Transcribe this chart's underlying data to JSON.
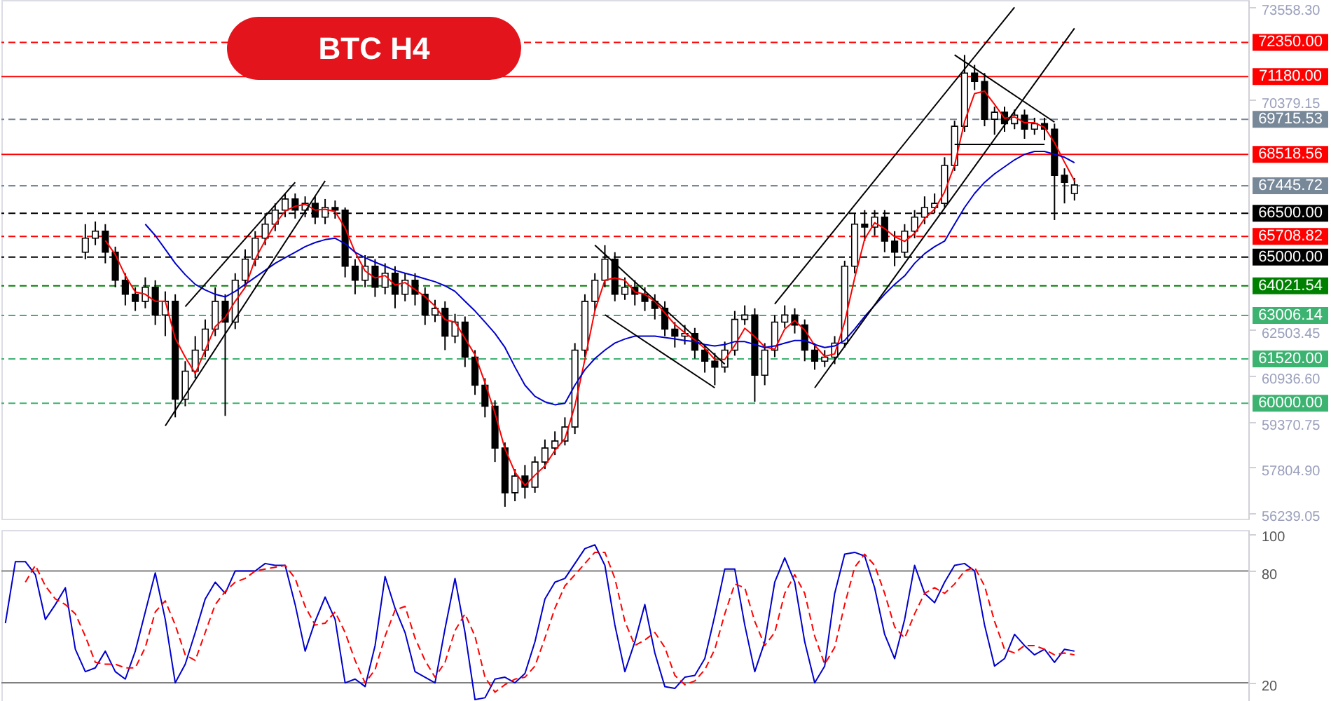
{
  "chart_data": [
    {
      "type": "candlestick",
      "title": "BTC H4",
      "tick_labels": "y",
      "categories": [
        null,
        null,
        null,
        null,
        null,
        null,
        null,
        null,
        null,
        null,
        null,
        null,
        null,
        null,
        null,
        null,
        null,
        null,
        null,
        null,
        null,
        null,
        null,
        null,
        null,
        null,
        null,
        null,
        null,
        null,
        null,
        null,
        null,
        null,
        null,
        null,
        null,
        null,
        null,
        null,
        null,
        null,
        null,
        null,
        null,
        null,
        null,
        null,
        null,
        null,
        null,
        null,
        null,
        null,
        null,
        null,
        null,
        null,
        null,
        null,
        null,
        null,
        null,
        null,
        null,
        null,
        null,
        null,
        null,
        null,
        null,
        null,
        null,
        null,
        null,
        null,
        null,
        null,
        null,
        null,
        null,
        null,
        null,
        null,
        null,
        null,
        null,
        null,
        null,
        null,
        null,
        null,
        null,
        null,
        null,
        null,
        null,
        null,
        null,
        null
      ],
      "ohlc": [
        [
          65170,
          66130,
          64930,
          65650
        ],
        [
          65650,
          66220,
          65410,
          65890
        ],
        [
          65890,
          66130,
          64790,
          65170
        ],
        [
          65170,
          65360,
          63970,
          64210
        ],
        [
          64210,
          64450,
          63350,
          63730
        ],
        [
          63730,
          63970,
          63160,
          63490
        ],
        [
          63490,
          64310,
          63250,
          63970
        ],
        [
          63970,
          64210,
          62680,
          63020
        ],
        [
          63020,
          63830,
          62300,
          63490
        ],
        [
          63490,
          63730,
          59520,
          60140
        ],
        [
          60140,
          61440,
          59900,
          61100
        ],
        [
          61100,
          62300,
          60860,
          61820
        ],
        [
          61820,
          62870,
          61580,
          62540
        ],
        [
          62540,
          63970,
          62300,
          63490
        ],
        [
          63490,
          63730,
          59570,
          62780
        ],
        [
          62780,
          64450,
          62540,
          64210
        ],
        [
          64210,
          65270,
          63970,
          64930
        ],
        [
          64930,
          65890,
          64690,
          65650
        ],
        [
          65650,
          66510,
          65410,
          66130
        ],
        [
          66130,
          66840,
          65890,
          66610
        ],
        [
          66610,
          67180,
          66370,
          66990
        ],
        [
          66990,
          67180,
          66320,
          66610
        ],
        [
          66610,
          67080,
          66370,
          66840
        ],
        [
          66840,
          67080,
          66130,
          66370
        ],
        [
          66370,
          66990,
          66130,
          66700
        ],
        [
          66700,
          66940,
          66320,
          66610
        ],
        [
          66610,
          66700,
          64310,
          64690
        ],
        [
          64690,
          64930,
          63730,
          64210
        ],
        [
          64210,
          65070,
          63970,
          64690
        ],
        [
          64690,
          64930,
          63640,
          63970
        ],
        [
          63970,
          64790,
          63730,
          64450
        ],
        [
          64450,
          64690,
          63250,
          63730
        ],
        [
          63730,
          64450,
          63490,
          64210
        ],
        [
          64210,
          64450,
          63350,
          63730
        ],
        [
          63730,
          63970,
          62680,
          63020
        ],
        [
          63020,
          63540,
          62780,
          63250
        ],
        [
          63250,
          63490,
          61820,
          62300
        ],
        [
          62300,
          63060,
          62060,
          62780
        ],
        [
          62780,
          62970,
          61240,
          61580
        ],
        [
          61580,
          61820,
          60290,
          60620
        ],
        [
          60620,
          60860,
          59520,
          59900
        ],
        [
          59900,
          60100,
          57990,
          58470
        ],
        [
          58470,
          58660,
          56460,
          56940
        ],
        [
          56940,
          57750,
          56650,
          57510
        ],
        [
          57510,
          57890,
          56740,
          57130
        ],
        [
          57130,
          58180,
          56940,
          57990
        ],
        [
          57990,
          58760,
          57750,
          58470
        ],
        [
          58470,
          59040,
          58230,
          58710
        ],
        [
          58710,
          59520,
          58560,
          59190
        ],
        [
          59190,
          62060,
          58950,
          61820
        ],
        [
          61820,
          63730,
          61580,
          63490
        ],
        [
          63490,
          64450,
          63160,
          64210
        ],
        [
          64210,
          65410,
          63970,
          64930
        ],
        [
          64930,
          65170,
          63490,
          63730
        ],
        [
          63730,
          64310,
          63540,
          63970
        ],
        [
          63970,
          64210,
          63350,
          63730
        ],
        [
          63730,
          63970,
          63160,
          63490
        ],
        [
          63490,
          63730,
          62870,
          63250
        ],
        [
          63250,
          63490,
          62300,
          62540
        ],
        [
          62540,
          62780,
          61910,
          62300
        ],
        [
          62300,
          62680,
          62010,
          62390
        ],
        [
          62390,
          62580,
          61530,
          61820
        ],
        [
          61820,
          62010,
          61050,
          61440
        ],
        [
          61440,
          61720,
          60620,
          61240
        ],
        [
          61240,
          62110,
          61050,
          61820
        ],
        [
          61820,
          63160,
          61630,
          62870
        ],
        [
          62870,
          63350,
          62680,
          63020
        ],
        [
          63020,
          63250,
          60050,
          60960
        ],
        [
          60960,
          62060,
          60620,
          61820
        ],
        [
          61820,
          63020,
          61580,
          62780
        ],
        [
          62780,
          63350,
          62580,
          63020
        ],
        [
          63020,
          63250,
          62390,
          62680
        ],
        [
          62680,
          62870,
          61440,
          61820
        ],
        [
          61820,
          62060,
          61150,
          61440
        ],
        [
          61440,
          61820,
          61240,
          61580
        ],
        [
          61580,
          62300,
          61340,
          62060
        ],
        [
          62060,
          64880,
          61910,
          64690
        ],
        [
          64690,
          66510,
          64450,
          66130
        ],
        [
          66130,
          66610,
          65550,
          66030
        ],
        [
          66030,
          66610,
          65740,
          66370
        ],
        [
          66370,
          66610,
          65170,
          65550
        ],
        [
          65550,
          65890,
          64690,
          65170
        ],
        [
          65170,
          66130,
          64980,
          65890
        ],
        [
          65890,
          66610,
          65650,
          66370
        ],
        [
          66370,
          67080,
          66130,
          66700
        ],
        [
          66700,
          67180,
          66510,
          66840
        ],
        [
          66840,
          68420,
          66700,
          68140
        ],
        [
          68140,
          69670,
          67950,
          69480
        ],
        [
          69480,
          71920,
          69290,
          71300
        ],
        [
          71300,
          71580,
          70720,
          71010
        ],
        [
          71010,
          71300,
          69480,
          69720
        ],
        [
          69720,
          70150,
          69190,
          69960
        ],
        [
          69960,
          70150,
          69290,
          69570
        ],
        [
          69570,
          70050,
          69380,
          69860
        ],
        [
          69860,
          70050,
          69050,
          69380
        ],
        [
          69380,
          69770,
          69190,
          69570
        ],
        [
          69570,
          69770,
          69000,
          69380
        ],
        [
          69380,
          69570,
          66270,
          67800
        ],
        [
          67800,
          68040,
          66840,
          67560
        ],
        [
          67180,
          67710,
          66940,
          67470
        ]
      ],
      "series": [
        {
          "type": "line",
          "color": "#ff0000",
          "values": [
            null,
            null,
            65570,
            65090,
            64370,
            63810,
            63730,
            63490,
            63490,
            62220,
            61580,
            61020,
            61820,
            62620,
            62940,
            63490,
            63970,
            64930,
            65570,
            66130,
            66580,
            66740,
            66810,
            66610,
            66640,
            66560,
            66000,
            65170,
            64530,
            64290,
            64370,
            64050,
            64130,
            63890,
            63650,
            63330,
            62860,
            62780,
            62220,
            61660,
            60700,
            59660,
            58440,
            57640,
            57190,
            57540,
            57860,
            58390,
            58790,
            59910,
            61500,
            63170,
            64210,
            64290,
            64210,
            63810,
            63730,
            63490,
            63090,
            62700,
            62410,
            62170,
            61880,
            61500,
            61500,
            61980,
            62570,
            62280,
            61930,
            61850,
            62540,
            62830,
            62510,
            61980,
            61610,
            61690,
            62780,
            64290,
            65620,
            66180,
            65980,
            65700,
            65540,
            65810,
            66320,
            66640,
            67230,
            68150,
            69640,
            70600,
            70680,
            70230,
            69750,
            69800,
            69600,
            69600,
            69440,
            68920,
            68250,
            67610
          ]
        },
        {
          "type": "line",
          "color": "#0000cd",
          "values": [
            null,
            null,
            null,
            null,
            null,
            null,
            66130,
            65740,
            65270,
            64790,
            64400,
            64070,
            63880,
            63730,
            63640,
            63830,
            64070,
            64310,
            64550,
            64790,
            64980,
            65170,
            65360,
            65500,
            65600,
            65650,
            65460,
            65170,
            64980,
            64830,
            64690,
            64550,
            64450,
            64360,
            64260,
            64160,
            64020,
            63830,
            63490,
            63160,
            62780,
            62390,
            61910,
            61240,
            60620,
            60240,
            60050,
            59950,
            60000,
            60620,
            61150,
            61530,
            61820,
            62060,
            62200,
            62300,
            62300,
            62300,
            62250,
            62200,
            62150,
            62110,
            62010,
            61960,
            62010,
            62110,
            62110,
            62010,
            61910,
            61960,
            62060,
            62150,
            62150,
            62010,
            61910,
            61960,
            62150,
            62540,
            62970,
            63350,
            63730,
            64070,
            64360,
            64790,
            65120,
            65360,
            65550,
            66130,
            66700,
            67180,
            67560,
            67850,
            68090,
            68330,
            68520,
            68620,
            68620,
            68520,
            68420,
            68230
          ]
        },
        {
          "type": "line",
          "color": "#000000",
          "values": [
            null,
            null,
            null,
            null,
            null,
            null,
            null,
            null,
            59230,
            null,
            null,
            null,
            null,
            null,
            null,
            null,
            null,
            null,
            null,
            null,
            null,
            null,
            null,
            null,
            67610,
            null,
            null,
            null,
            null,
            null,
            null,
            null,
            null,
            null,
            null,
            null,
            null,
            null,
            null,
            null,
            null,
            null,
            null,
            null,
            null,
            null,
            null,
            null,
            null,
            null,
            null,
            null,
            null,
            null,
            null,
            null,
            null,
            null,
            null,
            null,
            null,
            null,
            null,
            null,
            null,
            null,
            null,
            null,
            null,
            null,
            null,
            null,
            null,
            null,
            null,
            null,
            null,
            null,
            null,
            null,
            null,
            null,
            null,
            null,
            null,
            null,
            null,
            null,
            null,
            null,
            null,
            null,
            null,
            null,
            null,
            null,
            null,
            null,
            null,
            null
          ]
        },
        {
          "type": "line",
          "color": "#000000",
          "values": [
            null,
            null,
            null,
            null,
            null,
            null,
            null,
            null,
            null,
            null,
            63310,
            null,
            null,
            null,
            null,
            null,
            null,
            null,
            null,
            null,
            null,
            67560,
            null,
            null,
            null,
            null,
            null,
            null,
            null,
            null,
            null,
            null,
            null,
            null,
            null,
            null,
            null,
            null,
            null,
            null,
            null,
            null,
            null,
            null,
            null,
            null,
            null,
            null,
            null,
            null,
            null,
            null,
            null,
            null,
            null,
            null,
            null,
            null,
            null,
            null,
            null,
            null,
            null,
            null,
            null,
            null,
            null,
            null,
            null,
            null,
            null,
            null,
            null,
            null,
            null,
            null,
            null,
            null,
            null,
            null,
            null,
            null,
            null,
            null,
            null,
            null,
            null,
            null,
            null,
            null,
            null,
            null,
            null,
            null,
            null,
            null,
            null,
            null,
            null,
            null
          ]
        },
        {
          "type": "line",
          "color": "#000000",
          "values": [
            null,
            null,
            null,
            null,
            null,
            null,
            null,
            null,
            null,
            null,
            null,
            null,
            null,
            null,
            null,
            null,
            null,
            null,
            null,
            null,
            null,
            null,
            null,
            null,
            null,
            null,
            null,
            null,
            null,
            null,
            null,
            null,
            null,
            null,
            null,
            null,
            null,
            null,
            null,
            null,
            null,
            null,
            null,
            null,
            null,
            null,
            null,
            null,
            null,
            null,
            null,
            65410,
            null,
            null,
            null,
            null,
            null,
            null,
            null,
            null,
            null,
            null,
            null,
            null,
            61340,
            null,
            null,
            null,
            null,
            null,
            null,
            null,
            null,
            null,
            null,
            null,
            null,
            null,
            null,
            null,
            null,
            null,
            null,
            null,
            null,
            null,
            null,
            null,
            null,
            null,
            null,
            null,
            null,
            null,
            null,
            null,
            null,
            null,
            null,
            null
          ]
        },
        {
          "type": "line",
          "color": "#000000",
          "values": [
            null,
            null,
            null,
            null,
            null,
            null,
            null,
            null,
            null,
            null,
            null,
            null,
            null,
            null,
            null,
            null,
            null,
            null,
            null,
            null,
            null,
            null,
            null,
            null,
            null,
            null,
            null,
            null,
            null,
            null,
            null,
            null,
            null,
            null,
            null,
            null,
            null,
            null,
            null,
            null,
            null,
            null,
            null,
            null,
            null,
            null,
            null,
            null,
            null,
            null,
            null,
            null,
            63030,
            null,
            null,
            null,
            null,
            null,
            null,
            null,
            null,
            null,
            null,
            60530,
            null,
            null,
            null,
            null,
            null,
            null,
            null,
            null,
            null,
            null,
            null,
            null,
            null,
            null,
            null,
            null,
            null,
            null,
            null,
            null,
            null,
            null,
            null,
            null,
            null,
            null,
            null,
            null,
            null,
            null,
            null,
            null,
            null,
            null,
            null,
            null
          ]
        },
        {
          "type": "line",
          "color": "#000000",
          "values": [
            null,
            null,
            null,
            null,
            null,
            null,
            null,
            null,
            null,
            null,
            null,
            null,
            null,
            null,
            null,
            null,
            null,
            null,
            null,
            null,
            null,
            null,
            null,
            null,
            null,
            null,
            null,
            null,
            null,
            null,
            null,
            null,
            null,
            null,
            null,
            null,
            null,
            null,
            null,
            null,
            null,
            null,
            null,
            null,
            null,
            null,
            null,
            null,
            null,
            null,
            null,
            null,
            null,
            null,
            null,
            null,
            null,
            null,
            null,
            null,
            null,
            null,
            null,
            null,
            null,
            null,
            null,
            null,
            null,
            63400,
            null,
            null,
            null,
            null,
            null,
            null,
            null,
            null,
            null,
            null,
            null,
            null,
            null,
            null,
            null,
            null,
            null,
            null,
            null,
            null,
            null,
            null,
            null,
            73550,
            null,
            null,
            null,
            null,
            null,
            null
          ]
        },
        {
          "type": "line",
          "color": "#000000",
          "values": [
            null,
            null,
            null,
            null,
            null,
            null,
            null,
            null,
            null,
            null,
            null,
            null,
            null,
            null,
            null,
            null,
            null,
            null,
            null,
            null,
            null,
            null,
            null,
            null,
            null,
            null,
            null,
            null,
            null,
            null,
            null,
            null,
            null,
            null,
            null,
            null,
            null,
            null,
            null,
            null,
            null,
            null,
            null,
            null,
            null,
            null,
            null,
            null,
            null,
            null,
            null,
            null,
            null,
            null,
            null,
            null,
            null,
            null,
            null,
            null,
            null,
            null,
            null,
            null,
            null,
            null,
            null,
            null,
            null,
            null,
            null,
            null,
            null,
            60530,
            null,
            null,
            null,
            null,
            null,
            null,
            null,
            null,
            null,
            null,
            null,
            null,
            null,
            null,
            null,
            null,
            null,
            null,
            null,
            null,
            null,
            null,
            null,
            null,
            null,
            72830
          ]
        },
        {
          "type": "line",
          "color": "#000000",
          "values": [
            null,
            null,
            null,
            null,
            null,
            null,
            null,
            null,
            null,
            null,
            null,
            null,
            null,
            null,
            null,
            null,
            null,
            null,
            null,
            null,
            null,
            null,
            null,
            null,
            null,
            null,
            null,
            null,
            null,
            null,
            null,
            null,
            null,
            null,
            null,
            null,
            null,
            null,
            null,
            null,
            null,
            null,
            null,
            null,
            null,
            null,
            null,
            null,
            null,
            null,
            null,
            null,
            null,
            null,
            null,
            null,
            null,
            null,
            null,
            null,
            null,
            null,
            null,
            null,
            null,
            null,
            null,
            null,
            null,
            null,
            null,
            null,
            null,
            null,
            null,
            null,
            null,
            null,
            null,
            null,
            null,
            null,
            null,
            null,
            null,
            null,
            null,
            71920,
            null,
            null,
            null,
            null,
            null,
            null,
            null,
            null,
            null,
            69620,
            null,
            null
          ]
        },
        {
          "type": "line",
          "color": "#000000",
          "values": [
            null,
            null,
            null,
            null,
            null,
            null,
            null,
            null,
            null,
            null,
            null,
            null,
            null,
            null,
            null,
            null,
            null,
            null,
            null,
            null,
            null,
            null,
            null,
            null,
            null,
            null,
            null,
            null,
            null,
            null,
            null,
            null,
            null,
            null,
            null,
            null,
            null,
            null,
            null,
            null,
            null,
            null,
            null,
            null,
            null,
            null,
            null,
            null,
            null,
            null,
            null,
            null,
            null,
            null,
            null,
            null,
            null,
            null,
            null,
            null,
            null,
            null,
            null,
            null,
            null,
            null,
            null,
            null,
            null,
            null,
            null,
            null,
            null,
            null,
            null,
            null,
            null,
            null,
            null,
            null,
            null,
            null,
            null,
            null,
            null,
            null,
            null,
            68860,
            null,
            null,
            null,
            null,
            null,
            null,
            null,
            null,
            68860,
            null,
            null,
            null
          ]
        }
      ],
      "ylim": [
        56050,
        73800
      ],
      "yticks": [
        {
          "value": 73558.3,
          "label": "73558.30"
        },
        {
          "value": 70379.15,
          "label": "70379.15"
        },
        {
          "value": 62503.45,
          "label": "62503.45"
        },
        {
          "value": 60936.6,
          "label": "60936.60"
        },
        {
          "value": 59370.75,
          "label": "59370.75"
        },
        {
          "value": 57804.9,
          "label": "57804.90"
        },
        {
          "value": 56239.05,
          "label": "56239.05"
        }
      ],
      "ref_lines": [
        {
          "axis": "y",
          "value": 72350,
          "label": "72350.00",
          "color": "#ff0000",
          "line_style": "dashed"
        },
        {
          "axis": "y",
          "value": 71180,
          "label": "71180.00",
          "color": "#ff0000",
          "line_style": "solid"
        },
        {
          "axis": "y",
          "value": 69715.53,
          "label": "69715.53",
          "color": "#778899",
          "line_style": "dashed"
        },
        {
          "axis": "y",
          "value": 68518.56,
          "label": "68518.56",
          "color": "#ff0000",
          "line_style": "solid"
        },
        {
          "axis": "y",
          "value": 67445.72,
          "label": "67445.72",
          "color": "#778899",
          "line_style": "dashed"
        },
        {
          "axis": "y",
          "value": 66500,
          "label": "66500.00",
          "color": "#000000",
          "line_style": "dashed"
        },
        {
          "axis": "y",
          "value": 65708.82,
          "label": "65708.82",
          "color": "#ff0000",
          "line_style": "dashed"
        },
        {
          "axis": "y",
          "value": 65000,
          "label": "65000.00",
          "color": "#000000",
          "line_style": "dashed"
        },
        {
          "axis": "y",
          "value": 64021.54,
          "label": "64021.54",
          "color": "#008000",
          "line_style": "dashed"
        },
        {
          "axis": "y",
          "value": 63006.14,
          "label": "63006.14",
          "color": "#3cb371",
          "line_style": "dashed"
        },
        {
          "axis": "y",
          "value": 61520,
          "label": "61520.00",
          "color": "#3cb371",
          "line_style": "dashed"
        },
        {
          "axis": "y",
          "value": 60000,
          "label": "60000.00",
          "color": "#3cb371",
          "line_style": "dashed"
        }
      ]
    },
    {
      "type": "line",
      "tick_labels": "y",
      "categories": [
        null,
        null,
        null,
        null,
        null,
        null,
        null,
        null,
        null,
        null,
        null,
        null,
        null,
        null,
        null,
        null,
        null,
        null,
        null,
        null,
        null,
        null,
        null,
        null,
        null,
        null,
        null,
        null,
        null,
        null,
        null,
        null,
        null,
        null,
        null,
        null,
        null,
        null,
        null,
        null,
        null,
        null,
        null,
        null,
        null,
        null,
        null,
        null,
        null,
        null,
        null,
        null,
        null,
        null,
        null,
        null,
        null,
        null,
        null,
        null,
        null,
        null,
        null,
        null,
        null,
        null,
        null,
        null,
        null,
        null,
        null,
        null,
        null,
        null,
        null,
        null,
        null,
        null,
        null,
        null,
        null,
        null,
        null,
        null,
        null,
        null,
        null,
        null,
        null,
        null,
        null,
        null,
        null,
        null,
        null,
        null,
        null,
        null,
        null,
        null,
        null,
        null,
        null,
        null,
        null,
        null,
        null,
        null
      ],
      "series": [
        {
          "color": "#0000cd",
          "line_style": "solid",
          "values": [
            52,
            85,
            85,
            78,
            54,
            62,
            71,
            38,
            26,
            28,
            37,
            26,
            22,
            37,
            58,
            79,
            54,
            20,
            30,
            47,
            65,
            74,
            68,
            80,
            80,
            80,
            84,
            83,
            83,
            62,
            37,
            53,
            66,
            54,
            20,
            22,
            18,
            40,
            77,
            60,
            47,
            26,
            23,
            20,
            49,
            76,
            47,
            11,
            12,
            22,
            23,
            20,
            25,
            42,
            65,
            74,
            76,
            84,
            92,
            94,
            83,
            51,
            26,
            42,
            62,
            36,
            18,
            17,
            23,
            24,
            33,
            56,
            81,
            81,
            51,
            26,
            42,
            74,
            87,
            74,
            42,
            20,
            29,
            68,
            89,
            90,
            88,
            71,
            46,
            33,
            54,
            83,
            68,
            63,
            74,
            83,
            84,
            80,
            51,
            29,
            33,
            46,
            40,
            35,
            38,
            31,
            38,
            37
          ]
        },
        {
          "color": "#ff0000",
          "line_style": "dashed",
          "values": [
            null,
            null,
            74,
            83,
            72,
            65,
            62,
            57,
            45,
            31,
            30,
            30,
            28,
            28,
            39,
            58,
            64,
            51,
            35,
            32,
            47,
            62,
            69,
            74,
            76,
            80,
            81,
            82,
            83,
            76,
            61,
            51,
            52,
            58,
            47,
            32,
            20,
            27,
            45,
            59,
            61,
            44,
            32,
            23,
            31,
            48,
            57,
            45,
            23,
            15,
            19,
            22,
            23,
            29,
            44,
            60,
            72,
            78,
            84,
            90,
            90,
            76,
            53,
            40,
            43,
            47,
            39,
            24,
            19,
            21,
            27,
            38,
            57,
            73,
            71,
            53,
            40,
            47,
            68,
            78,
            68,
            45,
            30,
            39,
            62,
            82,
            89,
            83,
            68,
            50,
            44,
            57,
            68,
            71,
            68,
            73,
            80,
            82,
            72,
            53,
            38,
            36,
            40,
            40,
            38,
            35,
            36,
            35
          ]
        }
      ],
      "ylim": [
        8,
        102
      ],
      "yticks": [
        100,
        80,
        20
      ],
      "ref_lines": [
        {
          "axis": "y",
          "value": 80,
          "color": "#808080",
          "line_style": "solid"
        },
        {
          "axis": "y",
          "value": 20,
          "color": "#808080",
          "line_style": "solid"
        }
      ]
    }
  ]
}
